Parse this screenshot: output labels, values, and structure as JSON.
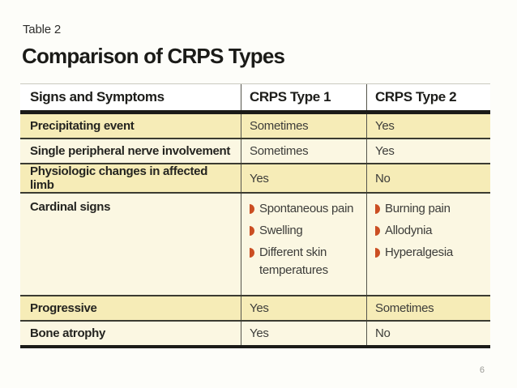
{
  "page": {
    "page_number": "6"
  },
  "header": {
    "eyebrow": "Table 2",
    "title": "Comparison of CRPS Types"
  },
  "table": {
    "columns": {
      "col1": "Signs and Symptoms",
      "col2": "CRPS Type 1",
      "col3": "CRPS Type 2"
    },
    "rows": [
      {
        "label": "Precipitating event",
        "type1": "Sometimes",
        "type2": "Yes"
      },
      {
        "label": "Single peripheral nerve involvement",
        "type1": "Sometimes",
        "type2": "Yes"
      },
      {
        "label": "Physiologic changes in affected limb",
        "type1": "Yes",
        "type2": "No"
      },
      {
        "label": "Cardinal signs",
        "type1_list": [
          "Spontaneous pain",
          "Swelling",
          "Different skin temperatures"
        ],
        "type2_list": [
          "Burning pain",
          "Allodynia",
          "Hyperalgesia"
        ]
      },
      {
        "label": "Progressive",
        "type1": "Yes",
        "type2": "Sometimes"
      },
      {
        "label": "Bone atrophy",
        "type1": "Yes",
        "type2": "No"
      }
    ],
    "colors": {
      "row_yellow": "#f6ecb7",
      "row_cream": "#fbf7e2",
      "bullet_orange": "#cb4e22",
      "rule_black": "#1b1b18"
    }
  }
}
